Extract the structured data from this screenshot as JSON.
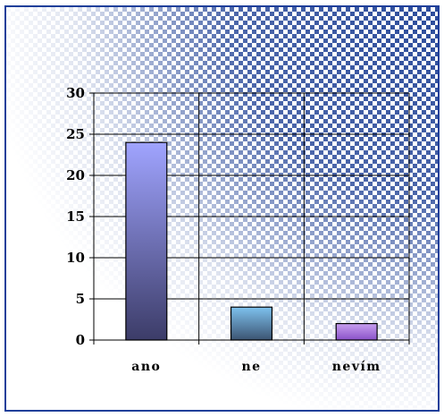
{
  "chart_data": {
    "type": "bar",
    "categories": [
      "ano",
      "ne",
      "nevím"
    ],
    "values": [
      24,
      4,
      2
    ],
    "ylim": [
      0,
      30
    ],
    "yticks": [
      0,
      5,
      10,
      15,
      20,
      25,
      30
    ],
    "grid": true,
    "legend": "none",
    "colors": {
      "bar_ano_top": "#a0a4ff",
      "bar_ano_bottom": "#3c3c68",
      "bar_ne_top": "#7ec2ee",
      "bar_ne_bottom": "#3c5472",
      "bar_nevim_top": "#c8a0f0",
      "bar_nevim_bottom": "#8a52c8",
      "frame": "#1f3f9a",
      "checker": "#2b4b9b"
    }
  }
}
